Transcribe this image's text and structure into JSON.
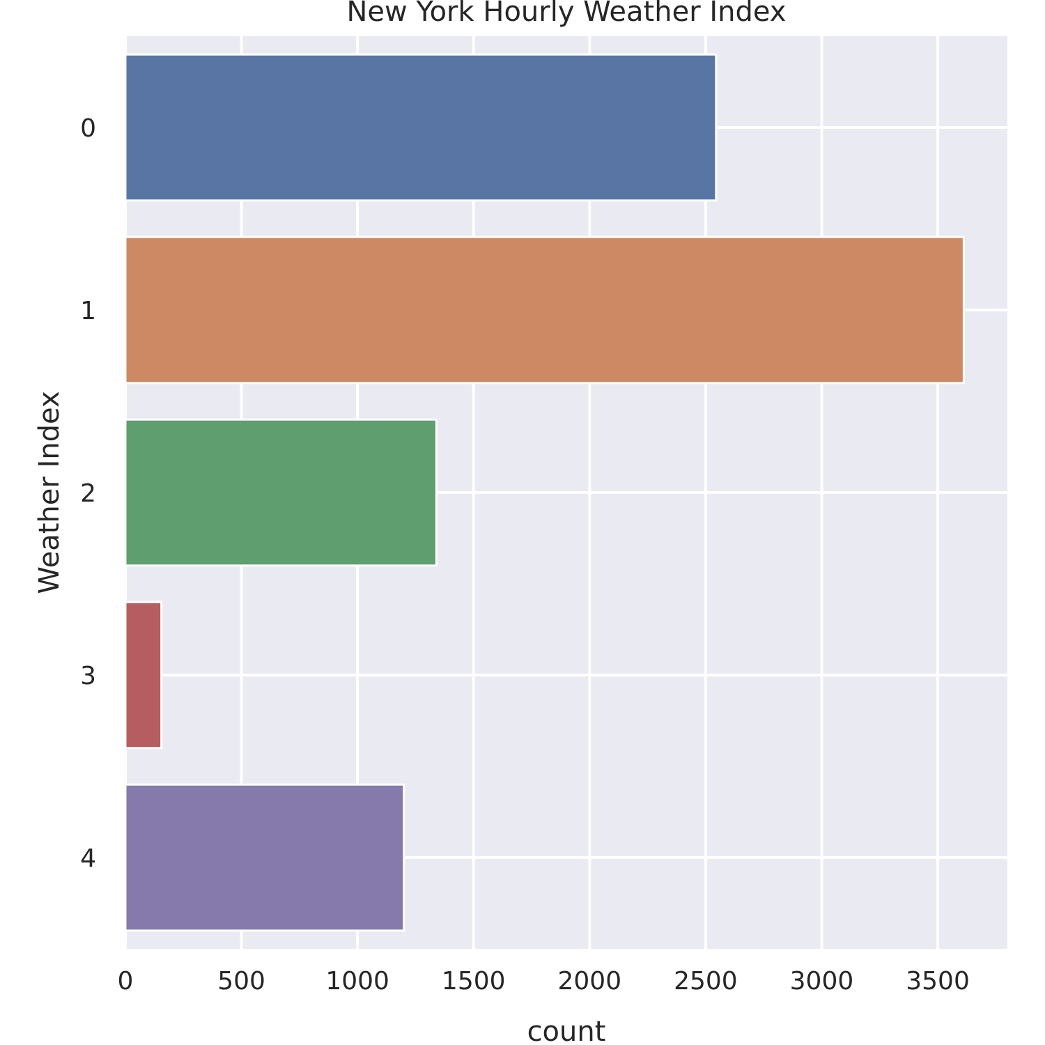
{
  "chart_data": {
    "type": "bar",
    "orientation": "horizontal",
    "title": "New York Hourly Weather Index",
    "xlabel": "count",
    "ylabel": "Weather Index",
    "categories": [
      "0",
      "1",
      "2",
      "3",
      "4"
    ],
    "values": [
      2545,
      3612,
      1340,
      155,
      1200
    ],
    "colors": [
      "#5975a4",
      "#cc8963",
      "#5f9e6e",
      "#b55d60",
      "#857aab"
    ],
    "xlim": [
      0,
      3800
    ],
    "xticks": [
      0,
      500,
      1000,
      1500,
      2000,
      2500,
      3000,
      3500
    ],
    "grid": true,
    "background": "#eaeaf2",
    "legend": "none"
  }
}
